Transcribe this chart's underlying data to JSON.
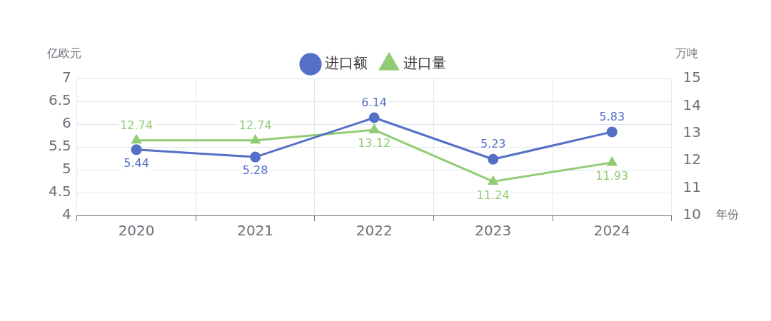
{
  "chart_data": {
    "type": "line",
    "categories": [
      "2020",
      "2021",
      "2022",
      "2023",
      "2024"
    ],
    "series": [
      {
        "name": "进口额",
        "color": "#5470c6",
        "marker": "circle",
        "values": [
          5.44,
          5.28,
          6.14,
          5.23,
          5.83
        ]
      },
      {
        "name": "进口量",
        "color": "#91cc75",
        "marker": "triangle",
        "axis": "y2",
        "values": [
          12.74,
          12.74,
          13.12,
          11.24,
          11.93
        ]
      }
    ],
    "ylabel": "亿欧元",
    "y2label": "万吨",
    "xlabel": "年份",
    "ylim": [
      4,
      7
    ],
    "yticks": [
      4,
      4.5,
      5,
      5.5,
      6,
      6.5,
      7
    ],
    "y2lim": [
      10,
      15
    ],
    "y2ticks": [
      10,
      11,
      12,
      13,
      14,
      15
    ],
    "grid": true,
    "legend": "top",
    "data_labels": true
  }
}
